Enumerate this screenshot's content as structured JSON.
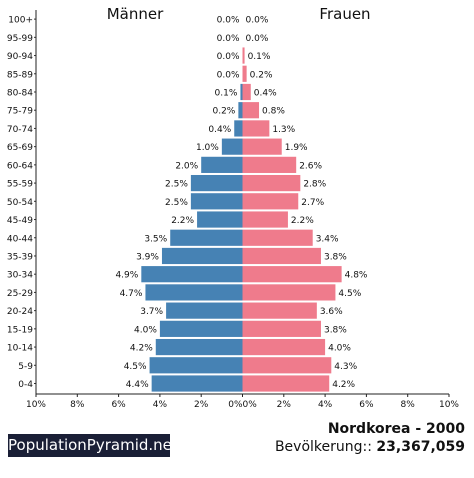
{
  "chart_data": {
    "type": "bar",
    "title": "Nordkorea - 2000",
    "population_label": "Bevölkerung::",
    "population_value": "23,367,059",
    "series_labels": {
      "male": "Männer",
      "female": "Frauen"
    },
    "colors": {
      "male": "#4682b4",
      "female": "#ef7b8c"
    },
    "xlim": [
      0,
      10
    ],
    "x_ticks": [
      "10%",
      "8%",
      "6%",
      "4%",
      "2%",
      "0%",
      "0%",
      "2%",
      "4%",
      "6%",
      "8%",
      "10%"
    ],
    "categories": [
      "100+",
      "95-99",
      "90-94",
      "85-89",
      "80-84",
      "75-79",
      "70-74",
      "65-69",
      "60-64",
      "55-59",
      "50-54",
      "45-49",
      "40-44",
      "35-39",
      "30-34",
      "25-29",
      "20-24",
      "15-19",
      "10-14",
      "5-9",
      "0-4"
    ],
    "male": [
      0.0,
      0.0,
      0.0,
      0.0,
      0.1,
      0.2,
      0.4,
      1.0,
      2.0,
      2.5,
      2.5,
      2.2,
      3.5,
      3.9,
      4.9,
      4.7,
      3.7,
      4.0,
      4.2,
      4.5,
      4.4
    ],
    "female": [
      0.0,
      0.0,
      0.1,
      0.2,
      0.4,
      0.8,
      1.3,
      1.9,
      2.6,
      2.8,
      2.7,
      2.2,
      3.4,
      3.8,
      4.8,
      4.5,
      3.6,
      3.8,
      4.0,
      4.3,
      4.2
    ],
    "male_labels": [
      "0.0%",
      "0.0%",
      "0.0%",
      "0.0%",
      "0.1%",
      "0.2%",
      "0.4%",
      "1.0%",
      "2.0%",
      "2.5%",
      "2.5%",
      "2.2%",
      "3.5%",
      "3.9%",
      "4.9%",
      "4.7%",
      "3.7%",
      "4.0%",
      "4.2%",
      "4.5%",
      "4.4%"
    ],
    "female_labels": [
      "0.0%",
      "0.0%",
      "0.1%",
      "0.2%",
      "0.4%",
      "0.8%",
      "1.3%",
      "1.9%",
      "2.6%",
      "2.8%",
      "2.7%",
      "2.2%",
      "3.4%",
      "3.8%",
      "4.8%",
      "4.5%",
      "3.6%",
      "3.8%",
      "4.0%",
      "4.3%",
      "4.2%"
    ]
  },
  "footer": {
    "brand": "PopulationPyramid.net"
  }
}
